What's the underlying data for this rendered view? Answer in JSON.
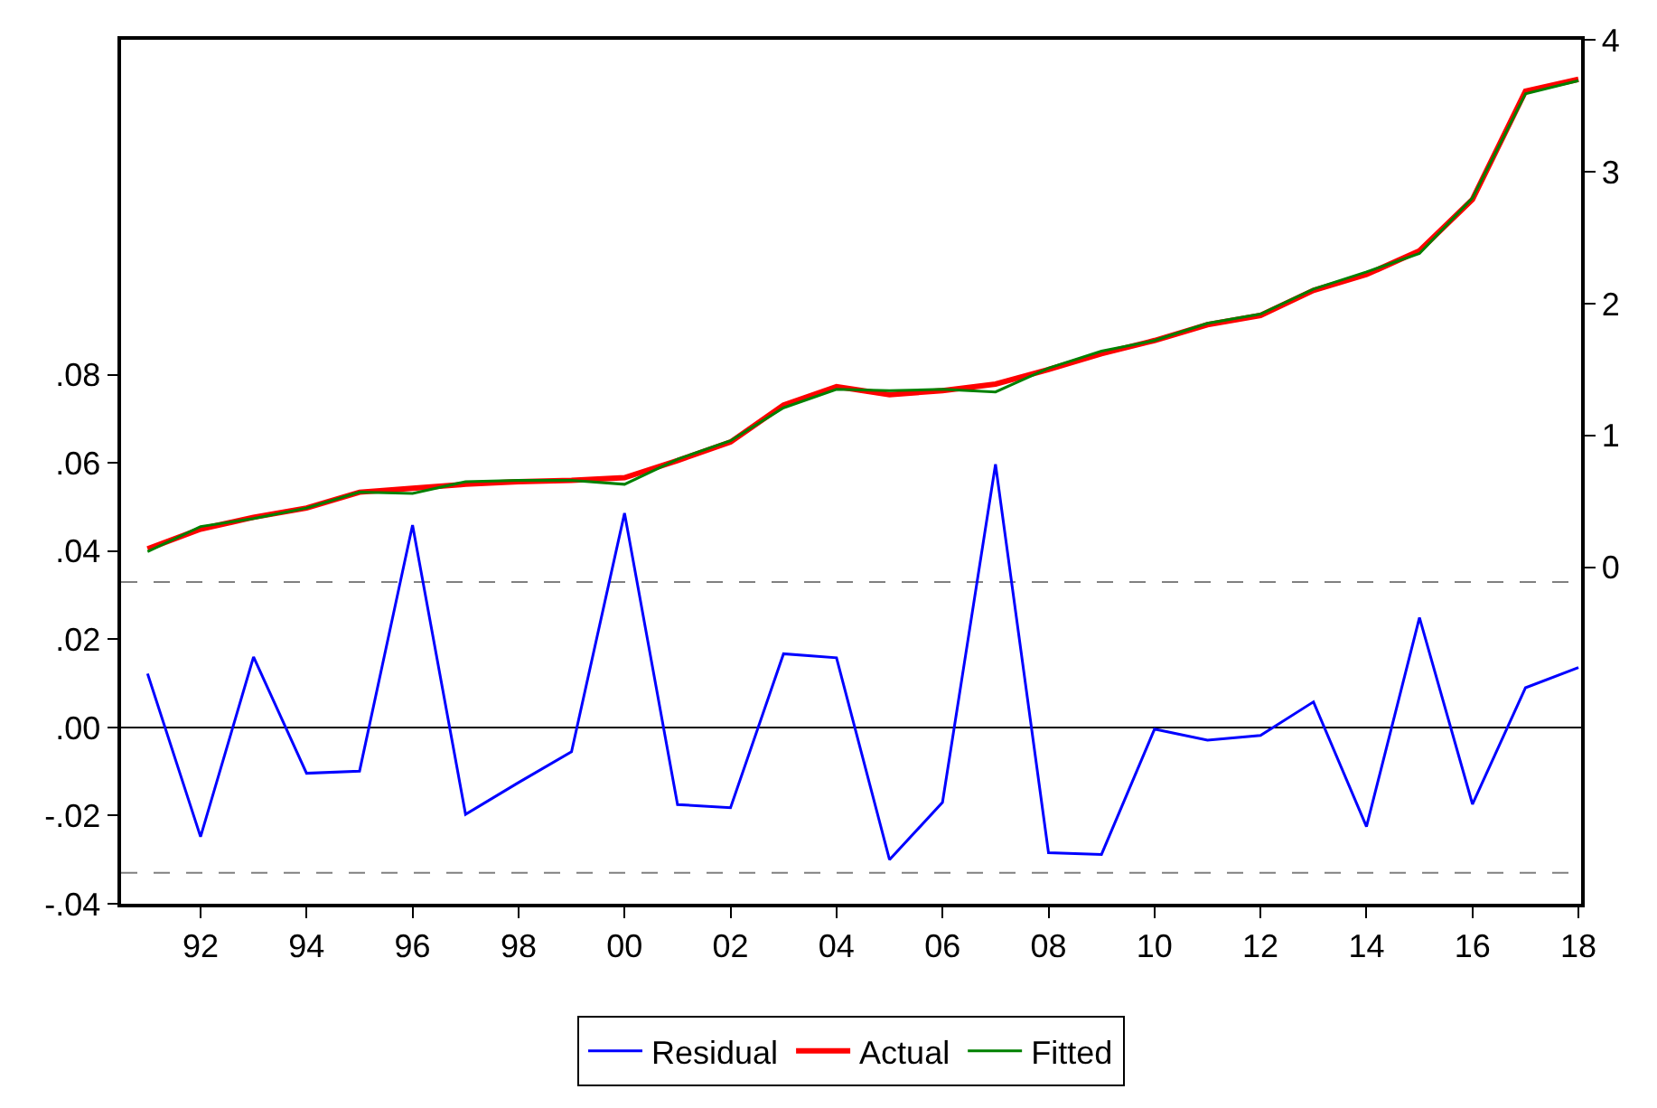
{
  "chart_data": {
    "type": "line",
    "x": [
      1991,
      1992,
      1993,
      1994,
      1995,
      1996,
      1997,
      1998,
      1999,
      2000,
      2001,
      2002,
      2003,
      2004,
      2005,
      2006,
      2007,
      2008,
      2009,
      2010,
      2011,
      2012,
      2013,
      2014,
      2015,
      2016,
      2017,
      2018
    ],
    "series": [
      {
        "name": "Residual",
        "color": "#0000ff",
        "values": [
          0.0122,
          -0.0248,
          0.016,
          -0.0104,
          -0.0099,
          0.0459,
          -0.0197,
          -0.0125,
          -0.0055,
          0.0486,
          -0.0175,
          -0.0182,
          0.0167,
          0.0158,
          -0.03,
          -0.017,
          0.0597,
          -0.0284,
          -0.0288,
          -0.0004,
          -0.0029,
          -0.0018,
          0.0058,
          -0.0225,
          0.0249,
          -0.0174,
          0.009,
          0.0136
        ]
      },
      {
        "name": "Actual",
        "color": "#ff0000",
        "axis": "y2",
        "values": [
          0.14,
          0.29,
          0.38,
          0.45,
          0.57,
          0.6,
          0.63,
          0.65,
          0.66,
          0.68,
          0.81,
          0.95,
          1.23,
          1.37,
          1.31,
          1.34,
          1.39,
          1.5,
          1.62,
          1.72,
          1.84,
          1.91,
          2.1,
          2.22,
          2.4,
          2.79,
          3.61,
          3.7
        ]
      },
      {
        "name": "Fitted",
        "color": "#008000",
        "axis": "y2",
        "values": [
          0.12,
          0.31,
          0.37,
          0.45,
          0.57,
          0.56,
          0.65,
          0.66,
          0.66,
          0.63,
          0.82,
          0.96,
          1.21,
          1.35,
          1.34,
          1.35,
          1.33,
          1.51,
          1.64,
          1.72,
          1.85,
          1.92,
          2.11,
          2.24,
          2.38,
          2.8,
          3.59,
          3.69
        ]
      }
    ],
    "xlim": [
      1990.5,
      2018.05
    ],
    "xticks": [
      {
        "value": 1992,
        "label": "92"
      },
      {
        "value": 1994,
        "label": "94"
      },
      {
        "value": 1996,
        "label": "96"
      },
      {
        "value": 1998,
        "label": "98"
      },
      {
        "value": 2000,
        "label": "00"
      },
      {
        "value": 2002,
        "label": "02"
      },
      {
        "value": 2004,
        "label": "04"
      },
      {
        "value": 2006,
        "label": "06"
      },
      {
        "value": 2008,
        "label": "08"
      },
      {
        "value": 2010,
        "label": "10"
      },
      {
        "value": 2012,
        "label": "12"
      },
      {
        "value": 2014,
        "label": "14"
      },
      {
        "value": 2016,
        "label": "16"
      },
      {
        "value": 2018,
        "label": "18"
      }
    ],
    "ylim": [
      -0.04,
      0.156
    ],
    "yticks": [
      {
        "value": -0.04,
        "label": "-.04"
      },
      {
        "value": -0.02,
        "label": "-.02"
      },
      {
        "value": 0,
        "label": ".00"
      },
      {
        "value": 0.02,
        "label": ".02"
      },
      {
        "value": 0.04,
        "label": ".04"
      },
      {
        "value": 0.06,
        "label": ".06"
      },
      {
        "value": 0.08,
        "label": ".08"
      }
    ],
    "y2lim": [
      -2.55,
      4
    ],
    "y2ticks": [
      0,
      1,
      2,
      3,
      4
    ],
    "ref_lines": [
      {
        "axis": "y",
        "value": 0,
        "color": "#000000",
        "line_style": "solid"
      },
      {
        "axis": "y",
        "value": 0.033,
        "color": "#808080",
        "line_style": "dashed"
      },
      {
        "axis": "y",
        "value": -0.033,
        "color": "#808080",
        "line_style": "dashed"
      }
    ],
    "grid": false,
    "legend": "bottom",
    "marker": "none",
    "line_style": "solid"
  }
}
